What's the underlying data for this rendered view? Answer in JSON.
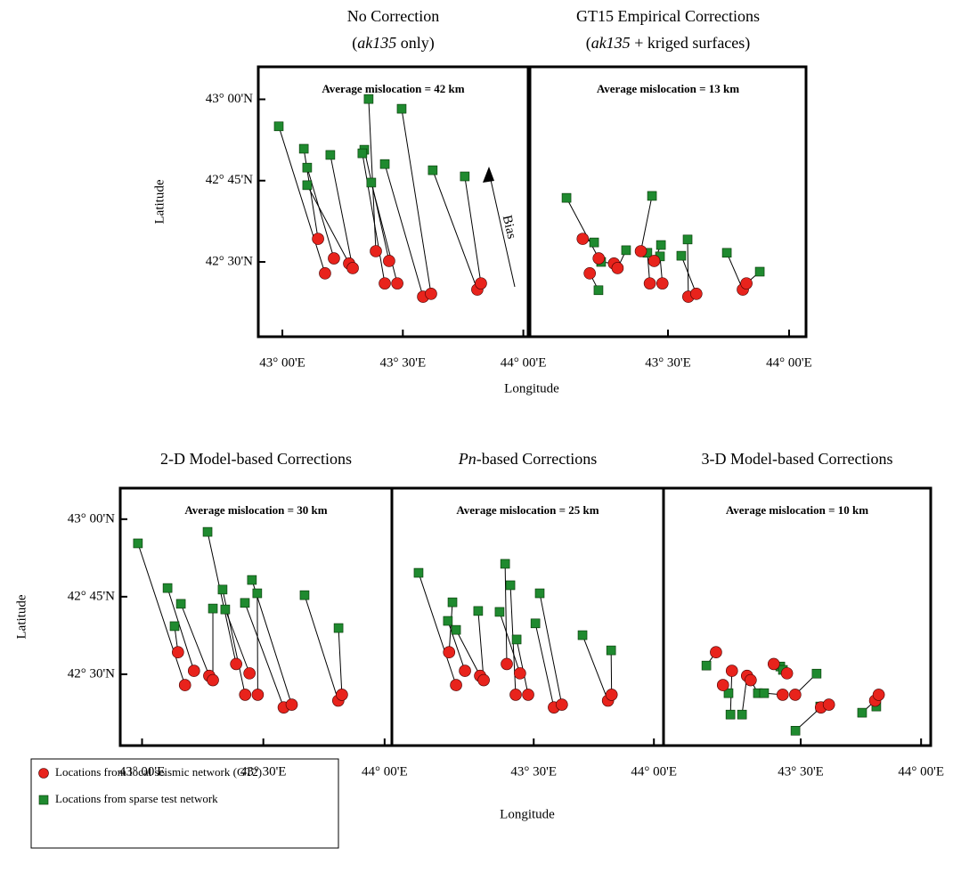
{
  "legend": [
    {
      "name": "Locations from local seismic network (GT2)",
      "color": "#e8231c",
      "marker": "circle"
    },
    {
      "name": "Locations from sparse test network",
      "color": "#1f8a2f",
      "marker": "square"
    }
  ],
  "chart_data": [
    {
      "type": "scatter",
      "title_parts": [
        {
          "text": "No Correction",
          "italic": false
        }
      ],
      "subtitle_parts": [
        {
          "text": "(",
          "italic": false
        },
        {
          "text": "ak135",
          "italic": true
        },
        {
          "text": " only)",
          "italic": false
        }
      ],
      "annotation": "Average mislocation = 42 km",
      "arrow_label": "Bias",
      "ylabel": "Latitude",
      "xlabel": "Longitude",
      "xlim": [
        42.9,
        44.02
      ],
      "ylim": [
        42.27,
        43.1
      ],
      "xticks": [
        {
          "value": 43,
          "label": "43° 00'E"
        },
        {
          "value": 43.5,
          "label": "43° 30'E"
        },
        {
          "value": 44,
          "label": "44° 00'E"
        }
      ],
      "yticks": [
        {
          "value": 42.5,
          "label": "42° 30'N"
        },
        {
          "value": 42.75,
          "label": "42° 45'N"
        },
        {
          "value": 43,
          "label": "43° 00'N"
        }
      ],
      "series": [
        {
          "x": [
            43.148,
            43.177,
            43.214,
            43.277,
            43.292,
            43.388,
            43.443,
            43.425,
            43.477,
            43.584,
            43.617,
            43.809,
            43.824
          ],
          "y": [
            42.571,
            42.465,
            42.511,
            42.495,
            42.481,
            42.533,
            42.503,
            42.434,
            42.434,
            42.393,
            42.402,
            42.415,
            42.434
          ]
        },
        {
          "x": [
            43.089,
            42.985,
            43.103,
            43.103,
            43.199,
            43.358,
            43.34,
            43.332,
            43.369,
            43.425,
            43.495,
            43.624,
            43.757
          ],
          "y": [
            42.848,
            42.917,
            42.79,
            42.736,
            42.829,
            43.001,
            42.845,
            42.834,
            42.744,
            42.801,
            42.971,
            42.782,
            42.763
          ]
        }
      ]
    },
    {
      "type": "scatter",
      "title_parts": [
        {
          "text": "GT15 Empirical Corrections",
          "italic": false
        }
      ],
      "subtitle_parts": [
        {
          "text": "(",
          "italic": false
        },
        {
          "text": "ak135",
          "italic": true
        },
        {
          "text": " + kriged surfaces)",
          "italic": false
        }
      ],
      "annotation": "Average mislocation = 13 km",
      "xlim": [
        42.93,
        44.07
      ],
      "ylim": [
        42.27,
        43.1
      ],
      "xticks": [
        {
          "value": 43.5,
          "label": "43° 30'E"
        },
        {
          "value": 44,
          "label": "44° 00'E"
        }
      ],
      "series": [
        {
          "x": [
            43.148,
            43.177,
            43.214,
            43.277,
            43.292,
            43.388,
            43.443,
            43.425,
            43.477,
            43.584,
            43.617,
            43.809,
            43.824
          ],
          "y": [
            42.571,
            42.465,
            42.511,
            42.495,
            42.481,
            42.533,
            42.503,
            42.434,
            42.434,
            42.393,
            42.402,
            42.415,
            42.434
          ]
        },
        {
          "x": [
            43.195,
            43.213,
            43.081,
            43.224,
            43.327,
            43.434,
            43.471,
            43.415,
            43.467,
            43.581,
            43.555,
            43.743,
            43.879
          ],
          "y": [
            42.56,
            42.413,
            42.697,
            42.5,
            42.536,
            42.703,
            42.552,
            42.528,
            42.517,
            42.569,
            42.519,
            42.528,
            42.47
          ]
        }
      ]
    },
    {
      "type": "scatter",
      "title_parts": [
        {
          "text": "2-D Model-based Corrections",
          "italic": false
        }
      ],
      "annotation": "Average mislocation = 30 km",
      "ylabel": "Latitude",
      "xlim": [
        42.91,
        44.03
      ],
      "ylim": [
        42.27,
        43.1
      ],
      "xticks": [
        {
          "value": 43,
          "label": "43° 00'E"
        },
        {
          "value": 43.5,
          "label": "43° 30'E"
        },
        {
          "value": 44,
          "label": "44° 00'E"
        }
      ],
      "yticks": [
        {
          "value": 42.5,
          "label": "42° 30'N"
        },
        {
          "value": 42.75,
          "label": "42° 45'N"
        },
        {
          "value": 43,
          "label": "43° 00'N"
        }
      ],
      "series": [
        {
          "x": [
            43.148,
            43.177,
            43.214,
            43.277,
            43.292,
            43.388,
            43.443,
            43.425,
            43.477,
            43.584,
            43.617,
            43.809,
            43.824
          ],
          "y": [
            42.571,
            42.465,
            42.511,
            42.495,
            42.481,
            42.533,
            42.503,
            42.434,
            42.434,
            42.393,
            42.402,
            42.415,
            42.434
          ]
        },
        {
          "x": [
            43.134,
            42.983,
            43.105,
            43.16,
            43.292,
            43.27,
            43.343,
            43.332,
            43.475,
            43.424,
            43.453,
            43.67,
            43.81
          ],
          "y": [
            42.655,
            42.922,
            42.778,
            42.727,
            42.712,
            42.959,
            42.709,
            42.773,
            42.761,
            42.73,
            42.804,
            42.755,
            42.649
          ]
        }
      ]
    },
    {
      "type": "scatter",
      "title_parts": [
        {
          "text": "Pn",
          "italic": true
        },
        {
          "text": "-based Corrections",
          "italic": false
        }
      ],
      "annotation": "Average mislocation = 25 km",
      "xlabel": "Longitude",
      "xlim": [
        42.91,
        44.04
      ],
      "ylim": [
        42.27,
        43.1
      ],
      "xticks": [
        {
          "value": 43.5,
          "label": "43° 30'E"
        },
        {
          "value": 44,
          "label": "44° 00'E"
        }
      ],
      "series": [
        {
          "x": [
            43.148,
            43.177,
            43.214,
            43.277,
            43.292,
            43.388,
            43.443,
            43.425,
            43.477,
            43.584,
            43.617,
            43.809,
            43.824
          ],
          "y": [
            42.571,
            42.465,
            42.511,
            42.495,
            42.481,
            42.533,
            42.503,
            42.434,
            42.434,
            42.393,
            42.402,
            42.415,
            42.434
          ]
        },
        {
          "x": [
            43.162,
            43.021,
            43.143,
            43.177,
            43.269,
            43.381,
            43.358,
            43.403,
            43.429,
            43.507,
            43.525,
            43.703,
            43.822
          ],
          "y": [
            42.732,
            42.827,
            42.672,
            42.643,
            42.704,
            42.856,
            42.701,
            42.787,
            42.612,
            42.664,
            42.761,
            42.626,
            42.577
          ]
        }
      ]
    },
    {
      "type": "scatter",
      "title_parts": [
        {
          "text": "3-D Model-based Corrections",
          "italic": false
        }
      ],
      "annotation": "Average mislocation = 10 km",
      "xlim": [
        42.93,
        44.04
      ],
      "ylim": [
        42.27,
        43.1
      ],
      "xticks": [
        {
          "value": 43.5,
          "label": "43° 30'E"
        },
        {
          "value": 44,
          "label": "44° 00'E"
        }
      ],
      "series": [
        {
          "x": [
            43.148,
            43.177,
            43.214,
            43.277,
            43.292,
            43.388,
            43.443,
            43.425,
            43.477,
            43.584,
            43.617,
            43.809,
            43.824
          ],
          "y": [
            42.571,
            42.465,
            42.511,
            42.495,
            42.481,
            42.533,
            42.503,
            42.434,
            42.434,
            42.393,
            42.402,
            42.415,
            42.434
          ]
        },
        {
          "x": [
            43.108,
            43.2,
            43.208,
            43.256,
            43.322,
            43.415,
            43.426,
            43.348,
            43.566,
            43.478,
            43.581,
            43.755,
            43.814
          ],
          "y": [
            42.528,
            42.439,
            42.37,
            42.37,
            42.439,
            42.525,
            42.514,
            42.439,
            42.502,
            42.318,
            42.396,
            42.376,
            42.396
          ]
        }
      ]
    }
  ]
}
